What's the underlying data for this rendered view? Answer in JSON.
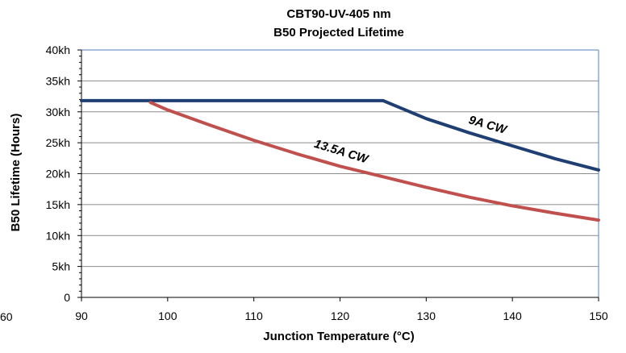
{
  "chart_data": {
    "type": "line",
    "title": "CBT90-UV-405 nm",
    "subtitle": "B50 Projected Lifetime",
    "xlabel": "Junction Temperature (°C)",
    "ylabel": "B50 Lifetime (Hours)",
    "xlim": [
      90,
      150
    ],
    "ylim": [
      0,
      40000
    ],
    "x_ticks": [
      90,
      100,
      110,
      120,
      130,
      140,
      150
    ],
    "y_ticks": [
      {
        "value": 0,
        "label": "0"
      },
      {
        "value": 5000,
        "label": "5kh"
      },
      {
        "value": 10000,
        "label": "10kh"
      },
      {
        "value": 15000,
        "label": "15kh"
      },
      {
        "value": 20000,
        "label": "20kh"
      },
      {
        "value": 25000,
        "label": "25kh"
      },
      {
        "value": 30000,
        "label": "30kh"
      },
      {
        "value": 35000,
        "label": "35kh"
      },
      {
        "value": 40000,
        "label": "40kh"
      }
    ],
    "grid": true,
    "stray_label": "60",
    "series": [
      {
        "name": "9A CW",
        "color": "#1f3f73",
        "label_x": 137,
        "label_y": 27300,
        "label_angle": 16,
        "x": [
          90,
          95,
          100,
          105,
          110,
          115,
          120,
          125,
          130,
          135,
          140,
          145,
          150
        ],
        "y": [
          31800,
          31800,
          31800,
          31800,
          31800,
          31800,
          31800,
          31800,
          28900,
          26600,
          24500,
          22400,
          20600
        ]
      },
      {
        "name": "13.5A CW",
        "color": "#c0504d",
        "label_x": 120,
        "label_y": 23000,
        "label_angle": 17,
        "x": [
          98,
          100,
          105,
          110,
          115,
          120,
          125,
          130,
          135,
          140,
          145,
          150
        ],
        "y": [
          31500,
          30300,
          27800,
          25400,
          23200,
          21200,
          19500,
          17800,
          16200,
          14800,
          13600,
          12500
        ]
      }
    ]
  }
}
